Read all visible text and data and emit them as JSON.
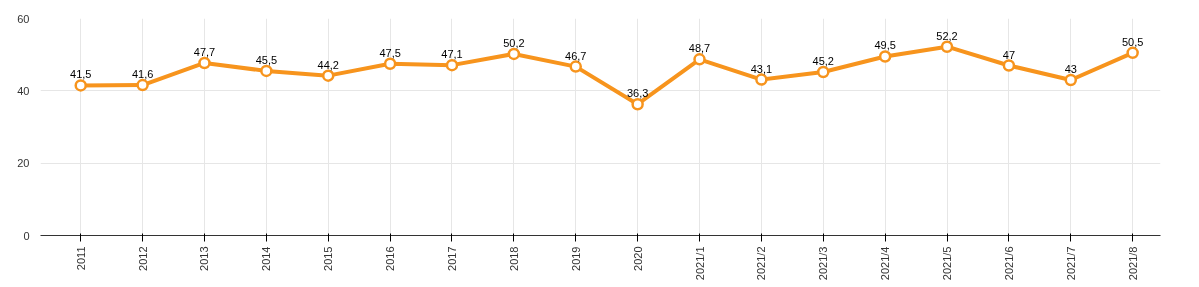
{
  "chart_data": {
    "type": "line",
    "categories": [
      "2011",
      "2012",
      "2013",
      "2014",
      "2015",
      "2016",
      "2017",
      "2018",
      "2019",
      "2020",
      "2021/1",
      "2021/2",
      "2021/3",
      "2021/4",
      "2021/5",
      "2021/6",
      "2021/7",
      "2021/8"
    ],
    "series": [
      {
        "color": "#f7941d",
        "values": [
          41.5,
          41.6,
          47.7,
          45.5,
          44.2,
          47.5,
          47.1,
          50.2,
          46.7,
          36.3,
          48.7,
          43.1,
          45.2,
          49.5,
          52.2,
          47,
          43,
          50.5
        ],
        "value_labels": [
          "41,5",
          "41,6",
          "47,7",
          "45,5",
          "44,2",
          "47,5",
          "47,1",
          "50,2",
          "46,7",
          "36,3",
          "48,7",
          "43,1",
          "45,2",
          "49,5",
          "52,2",
          "47",
          "43",
          "50,5"
        ]
      }
    ],
    "ylim": [
      0,
      60
    ],
    "yticks": [
      0,
      20,
      40,
      60
    ],
    "grid": true,
    "marker": "circle",
    "line_style": "solid"
  }
}
